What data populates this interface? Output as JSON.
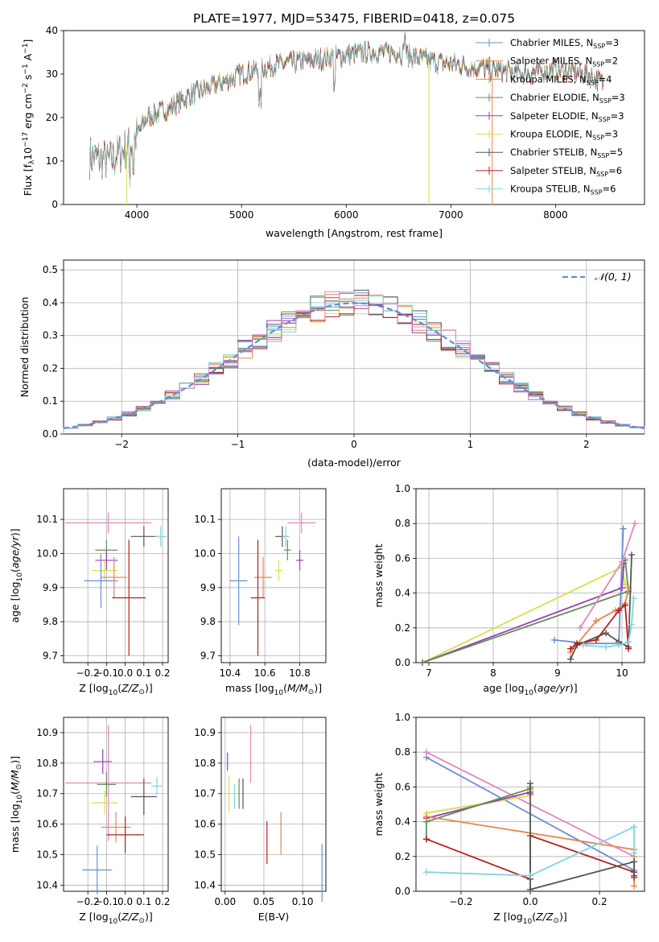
{
  "title": "PLATE=1977, MJD=53475, FIBERID=0418, z=0.075",
  "colors": [
    "#6b8fd6",
    "#e8874e",
    "#d9961e",
    "#5f8f5a",
    "#9c3cb3",
    "#d7df4d",
    "#555555",
    "#b51f1f",
    "#7ed8dc",
    "#e386c0",
    "#d56f1f"
  ],
  "chart_data": [
    {
      "type": "line",
      "id": "spectrum",
      "xlabel": "wavelength [Angstrom, rest frame]",
      "ylabel": "Flux [f_λ 10^-17 erg cm^-2 s^-1 A^-1]",
      "xlim": [
        3300,
        8850
      ],
      "ylim": [
        0,
        40
      ],
      "xticks": [
        4000,
        5000,
        6000,
        7000,
        8000
      ],
      "yticks": [
        0,
        10,
        20,
        30,
        40
      ],
      "grid": false,
      "legend": "top-right",
      "legend_entries": [
        {
          "base": "Chabrier MILES, N",
          "sub": "SSP",
          "tail": "=3"
        },
        {
          "base": "Salpeter MILES, N",
          "sub": "SSP",
          "tail": "=2"
        },
        {
          "base": "Kroupa MILES, N",
          "sub": "SSP",
          "tail": "=4"
        },
        {
          "base": "Chabrier ELODIE, N",
          "sub": "SSP",
          "tail": "=3"
        },
        {
          "base": "Salpeter ELODIE, N",
          "sub": "SSP",
          "tail": "=3"
        },
        {
          "base": "Kroupa ELODIE, N",
          "sub": "SSP",
          "tail": "=3"
        },
        {
          "base": "Chabrier STELIB, N",
          "sub": "SSP",
          "tail": "=5"
        },
        {
          "base": "Salpeter STELIB, N",
          "sub": "SSP",
          "tail": "=6"
        },
        {
          "base": "Kroupa STELIB, N",
          "sub": "SSP",
          "tail": "=6"
        }
      ],
      "legend_colors": [
        "#6b8fd6",
        "#e8874e",
        "#d9961e",
        "#5f8f5a",
        "#9c3cb3",
        "#d7df4d",
        "#555555",
        "#b51f1f",
        "#7ed8dc"
      ],
      "continuum_x": [
        3550,
        3750,
        3950,
        4100,
        4300,
        4500,
        4800,
        5000,
        5300,
        5600,
        5900,
        6200,
        6500,
        6800,
        7100,
        7400,
        7700,
        8000,
        8300,
        8450
      ],
      "continuum_y": [
        11,
        10,
        14,
        20,
        22,
        25,
        28,
        30,
        32,
        33,
        34,
        35,
        35,
        33,
        32,
        31,
        30,
        31,
        30,
        28
      ]
    },
    {
      "type": "bar",
      "id": "residuals",
      "xlabel": "(data-model)/error",
      "ylabel": "Normed distribution",
      "xlim": [
        -2.5,
        2.5
      ],
      "ylim": [
        0,
        0.53
      ],
      "xticks": [
        -2,
        -1,
        0,
        1,
        2
      ],
      "xticklabels": [
        "−2",
        "−1",
        "0",
        "1",
        "2"
      ],
      "yticks": [
        0,
        0.1,
        0.2,
        0.3,
        0.4,
        0.5
      ],
      "yticklabels": [
        "0.0",
        "0.1",
        "0.2",
        "0.3",
        "0.4",
        "0.5"
      ],
      "grid": true,
      "legend": "top-right",
      "legend_label": "𝒩(0, 1)",
      "bins": 40,
      "bin_width": 0.125
    },
    {
      "type": "scatter",
      "id": "age_vs_Z",
      "xlabel": "Z [log10(Z/Z☉)]",
      "ylabel": "age [log10(age/yr)]",
      "xlim": [
        -0.33,
        0.23
      ],
      "ylim": [
        9.68,
        10.19
      ],
      "xticks": [
        -0.2,
        -0.1,
        0.0,
        0.1,
        0.2
      ],
      "xticklabels": [
        "−0.2",
        "−0.1",
        "0.0",
        "0.1",
        "0.2"
      ],
      "yticks": [
        9.7,
        9.8,
        9.9,
        10.0,
        10.1
      ],
      "yticklabels": [
        "9.7",
        "9.8",
        "9.9",
        "10.0",
        "10.1"
      ],
      "grid": true,
      "points": [
        {
          "c": "#e386c0",
          "x": -0.09,
          "y": 10.09,
          "xe": 0.23,
          "ye": 0.03
        },
        {
          "c": "#555555",
          "x": 0.1,
          "y": 10.05,
          "xe": 0.07,
          "ye": 0.03
        },
        {
          "c": "#7ed8dc",
          "x": 0.19,
          "y": 10.05,
          "xe": 0.03,
          "ye": 0.03
        },
        {
          "c": "#5f8f5a",
          "x": -0.1,
          "y": 10.01,
          "xe": 0.06,
          "ye": 0.03
        },
        {
          "c": "#9c3cb3",
          "x": -0.1,
          "y": 9.98,
          "xe": 0.06,
          "ye": 0.03
        },
        {
          "c": "#d7df4d",
          "x": -0.11,
          "y": 9.95,
          "xe": 0.07,
          "ye": 0.03
        },
        {
          "c": "#e8874e",
          "x": -0.06,
          "y": 9.93,
          "xe": 0.07,
          "ye": 0.06
        },
        {
          "c": "#6b8fd6",
          "x": -0.13,
          "y": 9.92,
          "xe": 0.09,
          "ye": 0.08
        },
        {
          "c": "#b51f1f",
          "x": 0.02,
          "y": 9.87,
          "xe": 0.09,
          "ye": 0.17
        }
      ]
    },
    {
      "type": "scatter",
      "id": "age_vs_mass",
      "xlabel": "mass [log10(M/M☉)]",
      "xlim": [
        10.35,
        10.95
      ],
      "ylim": [
        9.68,
        10.19
      ],
      "xticks": [
        10.4,
        10.6,
        10.8
      ],
      "xticklabels": [
        "10.4",
        "10.6",
        "10.8"
      ],
      "yticks": [
        9.7,
        9.8,
        9.9,
        10.0,
        10.1
      ],
      "yticklabels": [
        "9.7",
        "9.8",
        "9.9",
        "10.0",
        "10.1"
      ],
      "grid": true,
      "points": [
        {
          "c": "#e386c0",
          "x": 10.81,
          "y": 10.09,
          "xe": 0.08,
          "ye": 0.03
        },
        {
          "c": "#555555",
          "x": 10.7,
          "y": 10.05,
          "xe": 0.04,
          "ye": 0.03
        },
        {
          "c": "#7ed8dc",
          "x": 10.72,
          "y": 10.05,
          "xe": 0.02,
          "ye": 0.03
        },
        {
          "c": "#5f8f5a",
          "x": 10.73,
          "y": 10.01,
          "xe": 0.02,
          "ye": 0.03
        },
        {
          "c": "#9c3cb3",
          "x": 10.8,
          "y": 9.98,
          "xe": 0.02,
          "ye": 0.03
        },
        {
          "c": "#d7df4d",
          "x": 10.68,
          "y": 9.95,
          "xe": 0.02,
          "ye": 0.03
        },
        {
          "c": "#e8874e",
          "x": 10.59,
          "y": 9.93,
          "xe": 0.05,
          "ye": 0.06
        },
        {
          "c": "#6b8fd6",
          "x": 10.45,
          "y": 9.92,
          "xe": 0.05,
          "ye": 0.13
        },
        {
          "c": "#b51f1f",
          "x": 10.56,
          "y": 9.87,
          "xe": 0.04,
          "ye": 0.17
        }
      ]
    },
    {
      "type": "line",
      "id": "massweight_vs_age",
      "xlabel": "age [log10(age/yr)]",
      "ylabel": "mass weight",
      "xlim": [
        6.8,
        10.35
      ],
      "ylim": [
        0,
        1
      ],
      "xticks": [
        7,
        8,
        9,
        10
      ],
      "yticks": [
        0,
        0.2,
        0.4,
        0.6,
        0.8,
        1.0
      ],
      "yticklabels": [
        "0.0",
        "0.2",
        "0.4",
        "0.6",
        "0.8",
        "1.0"
      ],
      "grid": true,
      "series": [
        {
          "c": "#d7df4d",
          "x": [
            6.9,
            10.0,
            10.05
          ],
          "y": [
            0.0,
            0.55,
            0.45
          ]
        },
        {
          "c": "#9c3cb3",
          "x": [
            6.9,
            10.0,
            10.03
          ],
          "y": [
            0.0,
            0.43,
            0.57
          ]
        },
        {
          "c": "#5f8f5a",
          "x": [
            6.9,
            10.1,
            10.05
          ],
          "y": [
            0.0,
            0.41,
            0.59
          ]
        },
        {
          "c": "#6b8fd6",
          "x": [
            8.95,
            9.45,
            9.95,
            10.02
          ],
          "y": [
            0.13,
            0.11,
            0.11,
            0.77
          ]
        },
        {
          "c": "#e386c0",
          "x": [
            9.35,
            10.0,
            10.2
          ],
          "y": [
            0.2,
            0.58,
            0.8
          ]
        },
        {
          "c": "#e8874e",
          "x": [
            9.2,
            9.6,
            9.9,
            10.05,
            10.1
          ],
          "y": [
            0.06,
            0.24,
            0.3,
            0.34,
            0.43
          ]
        },
        {
          "c": "#555555",
          "x": [
            9.2,
            9.3,
            9.75,
            9.95,
            10.1,
            10.15
          ],
          "y": [
            0.02,
            0.1,
            0.17,
            0.12,
            0.09,
            0.62
          ]
        },
        {
          "c": "#b51f1f",
          "x": [
            9.2,
            9.3,
            9.6,
            9.95,
            10.05,
            10.1
          ],
          "y": [
            0.08,
            0.11,
            0.13,
            0.3,
            0.33,
            0.08
          ]
        },
        {
          "c": "#7ed8dc",
          "x": [
            9.4,
            9.75,
            9.95,
            10.1,
            10.15,
            10.18
          ],
          "y": [
            0.1,
            0.09,
            0.1,
            0.12,
            0.22,
            0.37
          ]
        }
      ]
    },
    {
      "type": "scatter",
      "id": "mass_vs_Z",
      "xlabel": "Z [log10(Z/Z☉)]",
      "ylabel": "mass [log10(M/M☉)]",
      "xlim": [
        -0.33,
        0.23
      ],
      "ylim": [
        10.38,
        10.95
      ],
      "xticks": [
        -0.2,
        -0.1,
        0.0,
        0.1,
        0.2
      ],
      "xticklabels": [
        "−0.2",
        "−0.1",
        "0.0",
        "0.1",
        "0.2"
      ],
      "yticks": [
        10.4,
        10.5,
        10.6,
        10.7,
        10.8,
        10.9
      ],
      "yticklabels": [
        "10.4",
        "10.5",
        "10.6",
        "10.7",
        "10.8",
        "10.9"
      ],
      "grid": true,
      "points": [
        {
          "c": "#e386c0",
          "x": -0.09,
          "y": 10.735,
          "xe": 0.23,
          "ye": 0.19
        },
        {
          "c": "#555555",
          "x": 0.1,
          "y": 10.69,
          "xe": 0.07,
          "ye": 0.06
        },
        {
          "c": "#7ed8dc",
          "x": 0.17,
          "y": 10.725,
          "xe": 0.03,
          "ye": 0.03
        },
        {
          "c": "#5f8f5a",
          "x": -0.1,
          "y": 10.73,
          "xe": 0.05,
          "ye": 0.04
        },
        {
          "c": "#9c3cb3",
          "x": -0.12,
          "y": 10.805,
          "xe": 0.05,
          "ye": 0.04
        },
        {
          "c": "#d7df4d",
          "x": -0.11,
          "y": 10.67,
          "xe": 0.07,
          "ye": 0.04
        },
        {
          "c": "#e8874e",
          "x": -0.05,
          "y": 10.59,
          "xe": 0.08,
          "ye": 0.05
        },
        {
          "c": "#6b8fd6",
          "x": -0.15,
          "y": 10.45,
          "xe": 0.08,
          "ye": 0.08
        },
        {
          "c": "#b51f1f",
          "x": 0.0,
          "y": 10.565,
          "xe": 0.1,
          "ye": 0.06
        }
      ]
    },
    {
      "type": "scatter",
      "id": "mass_vs_ebv",
      "xlabel": "E(B-V)",
      "xlim": [
        -0.005,
        0.13
      ],
      "ylim": [
        10.38,
        10.95
      ],
      "xticks": [
        0.0,
        0.05,
        0.1
      ],
      "xticklabels": [
        "0.00",
        "0.05",
        "0.10"
      ],
      "yticks": [
        10.4,
        10.5,
        10.6,
        10.7,
        10.8,
        10.9
      ],
      "yticklabels": [
        "10.4",
        "10.5",
        "10.6",
        "10.7",
        "10.8",
        "10.9"
      ],
      "grid": true,
      "points": [
        {
          "c": "#e386c0",
          "x": 0.033,
          "y": 10.83,
          "xe": 0,
          "ye": 0.095
        },
        {
          "c": "#555555",
          "x": 0.023,
          "y": 10.7,
          "xe": 0,
          "ye": 0.05
        },
        {
          "c": "#7ed8dc",
          "x": 0.012,
          "y": 10.69,
          "xe": 0,
          "ye": 0.04
        },
        {
          "c": "#5f8f5a",
          "x": 0.018,
          "y": 10.7,
          "xe": 0,
          "ye": 0.05
        },
        {
          "c": "#9c3cb3",
          "x": 0.003,
          "y": 10.805,
          "xe": 0,
          "ye": 0.03
        },
        {
          "c": "#d7df4d",
          "x": 0.005,
          "y": 10.7,
          "xe": 0,
          "ye": 0.06
        },
        {
          "c": "#e8874e",
          "x": 0.072,
          "y": 10.57,
          "xe": 0,
          "ye": 0.07
        },
        {
          "c": "#6b8fd6",
          "x": 0.125,
          "y": 10.44,
          "xe": 0,
          "ye": 0.095
        },
        {
          "c": "#b51f1f",
          "x": 0.054,
          "y": 10.54,
          "xe": 0,
          "ye": 0.07
        }
      ]
    },
    {
      "type": "line",
      "id": "massweight_vs_Z",
      "xlabel": "Z [log10(Z/Z☉)]",
      "ylabel": "mass weight",
      "xlim": [
        -0.33,
        0.33
      ],
      "ylim": [
        0,
        1
      ],
      "xticks": [
        -0.2,
        0.0,
        0.2
      ],
      "xticklabels": [
        "−0.2",
        "0.0",
        "0.2"
      ],
      "yticks": [
        0,
        0.2,
        0.4,
        0.6,
        0.8,
        1.0
      ],
      "yticklabels": [
        "0.0",
        "0.2",
        "0.4",
        "0.6",
        "0.8",
        "1.0"
      ],
      "grid": true,
      "series": [
        {
          "c": "#6b8fd6",
          "x": [
            -0.3,
            0.3
          ],
          "y": [
            0.77,
            0.12
          ]
        },
        {
          "c": "#e386c0",
          "x": [
            -0.3,
            0.3
          ],
          "y": [
            0.8,
            0.2
          ]
        },
        {
          "c": "#d7df4d",
          "x": [
            -0.3,
            0.0,
            0.0
          ],
          "y": [
            0.45,
            0.55,
            0.58
          ]
        },
        {
          "c": "#9c3cb3",
          "x": [
            -0.3,
            0.0,
            0.0
          ],
          "y": [
            0.42,
            0.57,
            0.56
          ]
        },
        {
          "c": "#5f8f5a",
          "x": [
            -0.3,
            -0.3,
            0.0,
            0.0
          ],
          "y": [
            0.3,
            0.4,
            0.59,
            0.6
          ]
        },
        {
          "c": "#e8874e",
          "x": [
            -0.3,
            0.3,
            0.3
          ],
          "y": [
            0.43,
            0.24,
            0.03
          ]
        },
        {
          "c": "#b51f1f",
          "x": [
            -0.3,
            0.0,
            0.0,
            0.3,
            0.3
          ],
          "y": [
            0.3,
            0.07,
            0.32,
            0.11,
            0.08
          ]
        },
        {
          "c": "#555555",
          "x": [
            0.0,
            0.0,
            0.3,
            0.3
          ],
          "y": [
            0.62,
            0.01,
            0.17,
            0.09
          ]
        },
        {
          "c": "#7ed8dc",
          "x": [
            -0.3,
            0.0,
            0.3,
            0.3
          ],
          "y": [
            0.11,
            0.09,
            0.37,
            0.22
          ]
        }
      ]
    }
  ]
}
